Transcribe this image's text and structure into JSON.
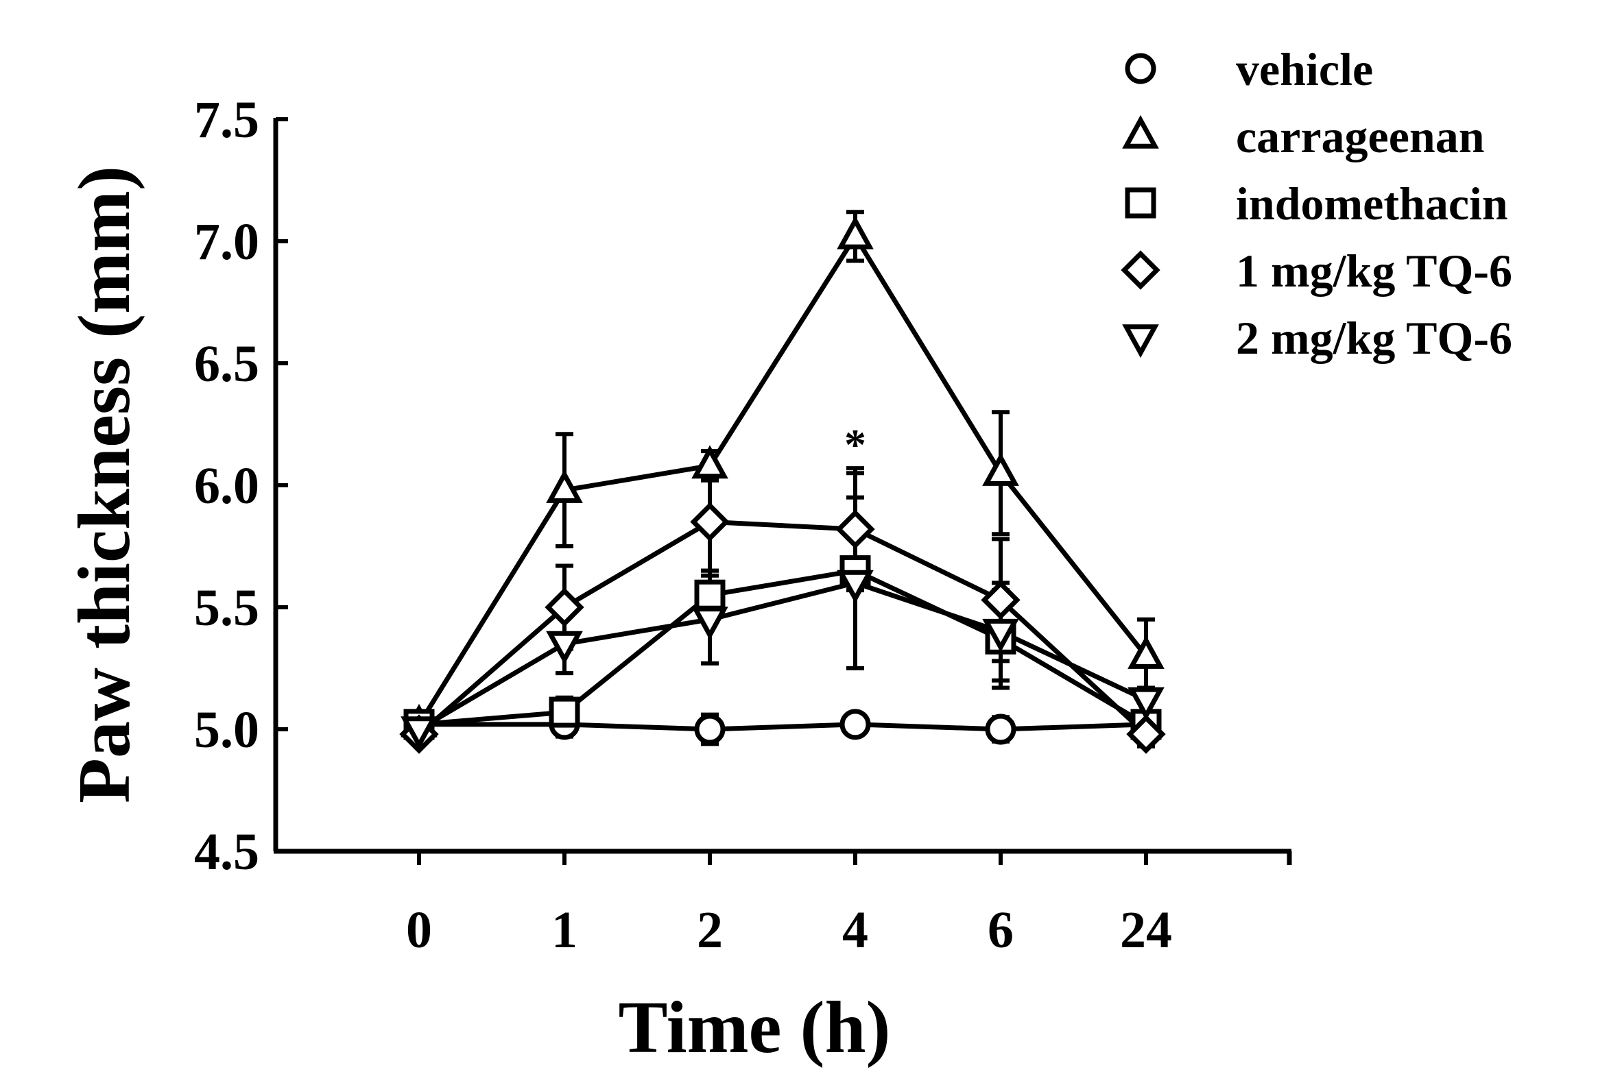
{
  "chart_data": {
    "type": "line",
    "title": "",
    "xlabel": "Time (h)",
    "ylabel": "Paw thickness (mm)",
    "categories": [
      "0",
      "1",
      "2",
      "4",
      "6",
      "24"
    ],
    "ylim": [
      4.5,
      7.5
    ],
    "yticks": [
      "4.5",
      "5.0",
      "5.5",
      "6.0",
      "6.5",
      "7.0",
      "7.5"
    ],
    "grid": false,
    "legend_position": "top-right",
    "series": [
      {
        "name": "vehicle",
        "marker": "circle",
        "values": [
          5.02,
          5.02,
          5.0,
          5.02,
          5.0,
          5.02
        ],
        "errors": [
          0.03,
          0.05,
          0.06,
          0.03,
          0.05,
          0.03
        ]
      },
      {
        "name": "carrageenan",
        "marker": "triangle-up",
        "values": [
          5.02,
          5.98,
          6.08,
          7.02,
          6.05,
          5.3
        ],
        "errors": [
          0.03,
          0.23,
          0.06,
          0.1,
          0.25,
          0.15
        ]
      },
      {
        "name": "indomethacin",
        "marker": "square",
        "values": [
          5.02,
          5.07,
          5.55,
          5.65,
          5.37,
          5.02
        ],
        "errors": [
          0.03,
          0.06,
          0.1,
          0.4,
          0.2,
          0.05
        ]
      },
      {
        "name": "1 mg/kg TQ-6",
        "marker": "diamond",
        "values": [
          4.98,
          5.5,
          5.85,
          5.82,
          5.53,
          4.98
        ],
        "errors": [
          0.03,
          0.17,
          0.2,
          0.25,
          0.25,
          0.05
        ]
      },
      {
        "name": "2 mg/kg TQ-6",
        "marker": "triangle-down",
        "values": [
          5.0,
          5.35,
          5.45,
          5.6,
          5.4,
          5.12
        ],
        "errors": [
          0.03,
          0.12,
          0.18,
          0.35,
          0.2,
          0.05
        ]
      }
    ],
    "annotations": [
      {
        "text": "*",
        "category": "4",
        "value": 6.18
      }
    ]
  }
}
